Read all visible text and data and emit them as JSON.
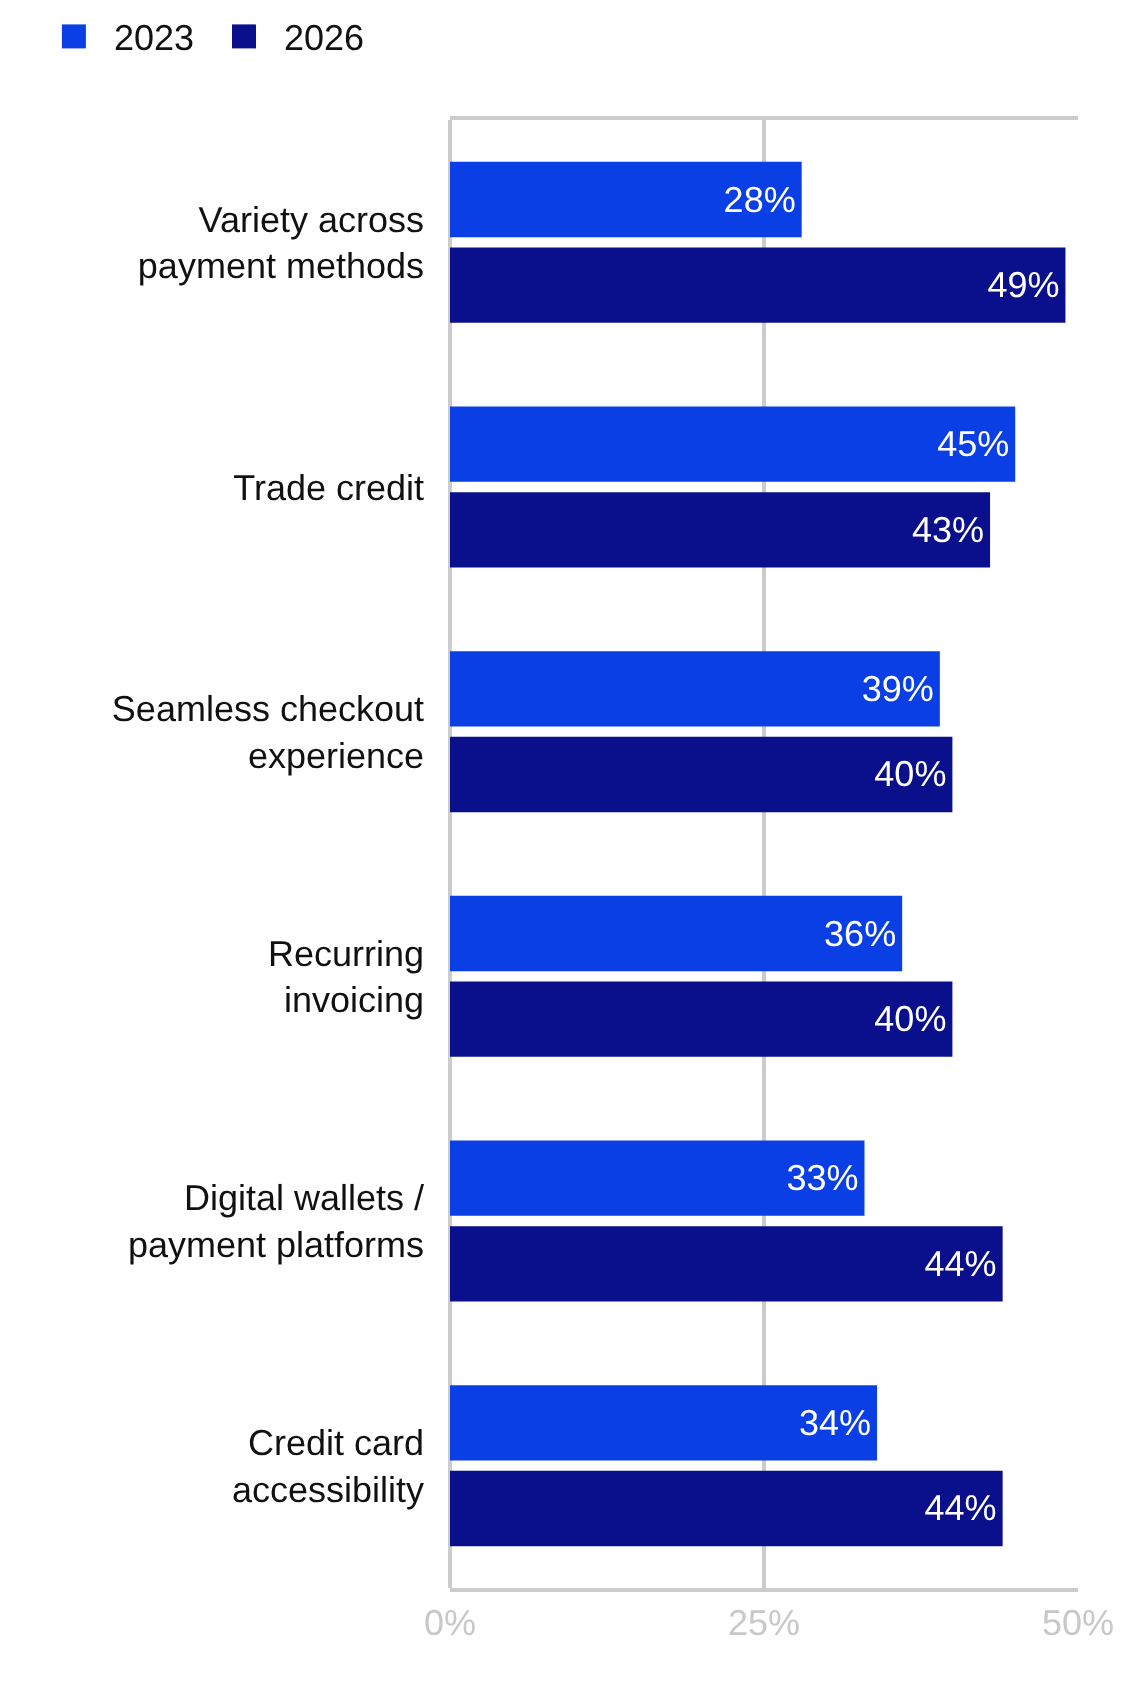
{
  "chart_data": {
    "type": "bar",
    "orientation": "horizontal",
    "categories": [
      "Variety across\npayment methods",
      "Trade credit",
      "Seamless checkout\nexperience",
      "Recurring\ninvoicing",
      "Digital wallets /\npayment platforms",
      "Credit card\naccessibility"
    ],
    "series": [
      {
        "name": "2023",
        "color": "#0b3fe6",
        "values": [
          28,
          45,
          39,
          36,
          33,
          34
        ],
        "value_labels": [
          "28%",
          "45%",
          "39%",
          "36%",
          "33%",
          "34%"
        ]
      },
      {
        "name": "2026",
        "color": "#0a0f8c",
        "values": [
          49,
          43,
          40,
          40,
          44,
          44
        ],
        "value_labels": [
          "49%",
          "43%",
          "40%",
          "40%",
          "44%",
          "44%"
        ]
      }
    ],
    "xlim": [
      0,
      50
    ],
    "xticks": [
      {
        "value": 0,
        "label": "0%"
      },
      {
        "value": 25,
        "label": "25%"
      },
      {
        "value": 50,
        "label": "50%"
      }
    ],
    "grid": "x",
    "legend": "top left"
  }
}
